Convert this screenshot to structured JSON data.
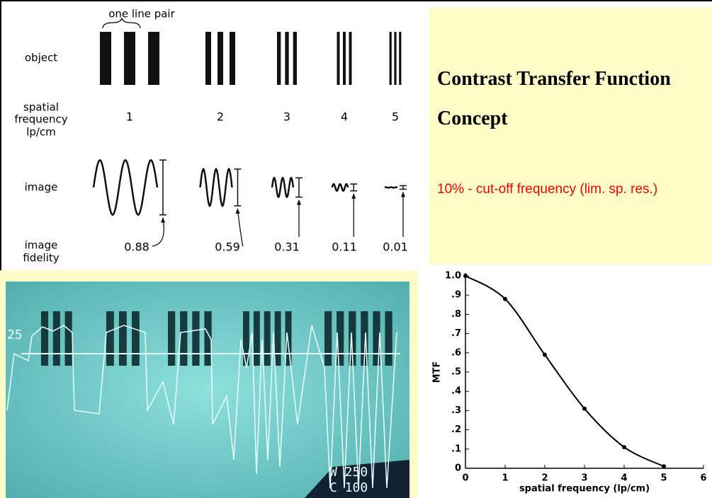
{
  "diagram": {
    "one_line_pair": "one line pair",
    "row_labels": {
      "object": "object",
      "spatial_frequency": [
        "spatial",
        "frequency",
        "lp/cm"
      ],
      "image": "image",
      "image_fidelity": [
        "image",
        "fidelity"
      ]
    },
    "columns": [
      {
        "frequency": 1,
        "fidelity": 0.88
      },
      {
        "frequency": 2,
        "fidelity": 0.59
      },
      {
        "frequency": 3,
        "fidelity": 0.31
      },
      {
        "frequency": 4,
        "fidelity": 0.11
      },
      {
        "frequency": 5,
        "fidelity": 0.01
      }
    ]
  },
  "panel": {
    "title": [
      "Contrast Transfer Function",
      "Concept"
    ],
    "note": "10% - cut-off frequency (lim. sp. res.)"
  },
  "photo": {
    "labels": [
      "25",
      "W  250",
      "C  100"
    ]
  },
  "chart_data": {
    "type": "line",
    "x": [
      0,
      1,
      2,
      3,
      4,
      5
    ],
    "series": [
      {
        "name": "MTF",
        "color": "#000000",
        "values": [
          1.0,
          0.88,
          0.59,
          0.31,
          0.11,
          0.01
        ]
      }
    ],
    "xlabel": "spatial frequency (lp/cm)",
    "ylabel": "MTF",
    "xlim": [
      0,
      6
    ],
    "xticks": [
      0,
      1,
      2,
      3,
      4,
      5,
      6
    ],
    "ylim": [
      0,
      1.0
    ],
    "yticks": [
      0,
      {
        "value": 0.1,
        "label": ".1"
      },
      {
        "value": 0.2,
        "label": ".2"
      },
      {
        "value": 0.3,
        "label": ".3"
      },
      {
        "value": 0.4,
        "label": ".4"
      },
      {
        "value": 0.5,
        "label": ".5"
      },
      {
        "value": 0.6,
        "label": ".6"
      },
      {
        "value": 0.7,
        "label": ".7"
      },
      {
        "value": 0.8,
        "label": ".8"
      },
      {
        "value": 0.9,
        "label": ".9"
      },
      {
        "value": 1.0,
        "label": "1.0"
      }
    ]
  }
}
